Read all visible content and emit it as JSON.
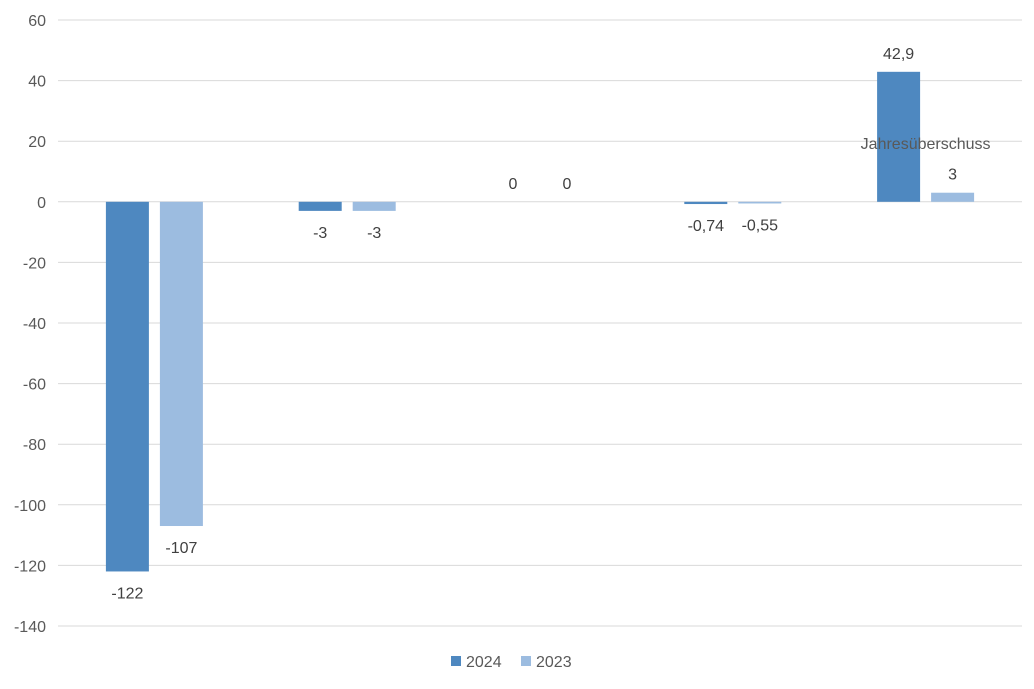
{
  "chart_data": {
    "type": "bar",
    "categories": [
      "",
      "",
      "",
      "",
      "Jahresüberschuss"
    ],
    "series": [
      {
        "name": "2024",
        "color": "#4e88c0",
        "values": [
          -122,
          -3,
          0,
          -0.74,
          42.9
        ],
        "labels": [
          "-122",
          "-3",
          "0",
          "-0,74",
          "42,9"
        ]
      },
      {
        "name": "2023",
        "color": "#9cbce0",
        "values": [
          -107,
          -3,
          0,
          -0.55,
          3
        ],
        "labels": [
          "-107",
          "-3",
          "0",
          "-0,55",
          "3"
        ]
      }
    ],
    "yticks": [
      60,
      40,
      20,
      0,
      -20,
      -40,
      -60,
      -80,
      -100,
      -120,
      -140
    ],
    "ylim": [
      -140,
      60
    ],
    "grid": true,
    "legend_position": "bottom",
    "gridline_color": "#d9d9d9",
    "title": "",
    "xlabel": "",
    "ylabel": ""
  }
}
